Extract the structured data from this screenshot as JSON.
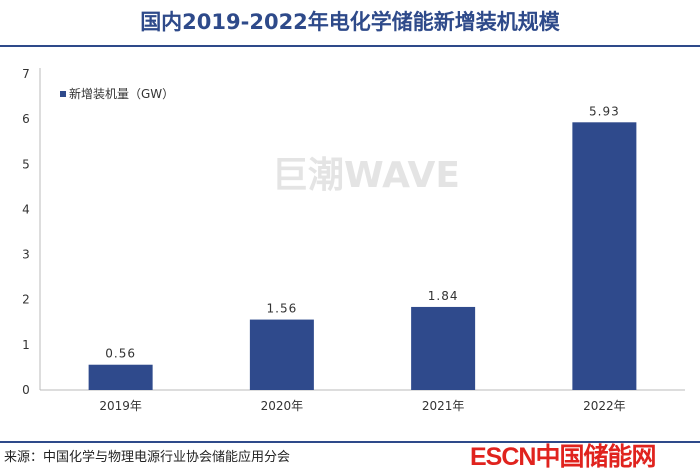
{
  "title": "国内2019-2022年电化学储能新增装机规模",
  "source": "来源：中国化学与物理电源行业协会储能应用分会",
  "logo": "ESCN中国储能网",
  "watermark": "巨潮WAVE",
  "colors": {
    "bar": "#2f4a8c",
    "title": "#2e4a8a",
    "logo": "#e0231e"
  },
  "chart_data": {
    "type": "bar",
    "categories": [
      "2019年",
      "2020年",
      "2021年",
      "2022年"
    ],
    "series": [
      {
        "name": "新增装机量（GW）",
        "values": [
          0.56,
          1.56,
          1.84,
          5.93
        ]
      }
    ],
    "data_labels": [
      "0.56",
      "1.56",
      "1.84",
      "5.93"
    ],
    "ylim": [
      0,
      7
    ],
    "yticks": [
      0,
      1,
      2,
      3,
      4,
      5,
      6,
      7
    ],
    "grid": false,
    "legend": "top-left"
  }
}
